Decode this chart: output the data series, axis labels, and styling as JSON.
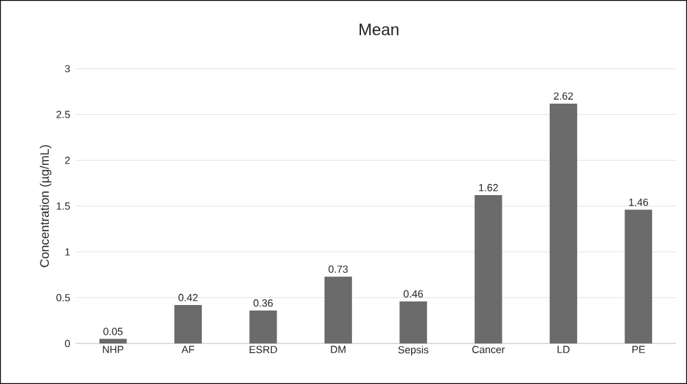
{
  "chart_data": {
    "type": "bar",
    "title": "Mean",
    "ylabel": "Concentration (µg/mL)",
    "categories": [
      "NHP",
      "AF",
      "ESRD",
      "DM",
      "Sepsis",
      "Cancer",
      "LD",
      "PE"
    ],
    "values": [
      0.05,
      0.42,
      0.36,
      0.73,
      0.46,
      1.62,
      2.62,
      1.46
    ],
    "color": "#6b6b6b",
    "ylim": [
      0,
      3
    ],
    "yticks": [
      0,
      0.5,
      1,
      1.5,
      2,
      2.5,
      3
    ],
    "grid": "y",
    "data_labels": true
  }
}
